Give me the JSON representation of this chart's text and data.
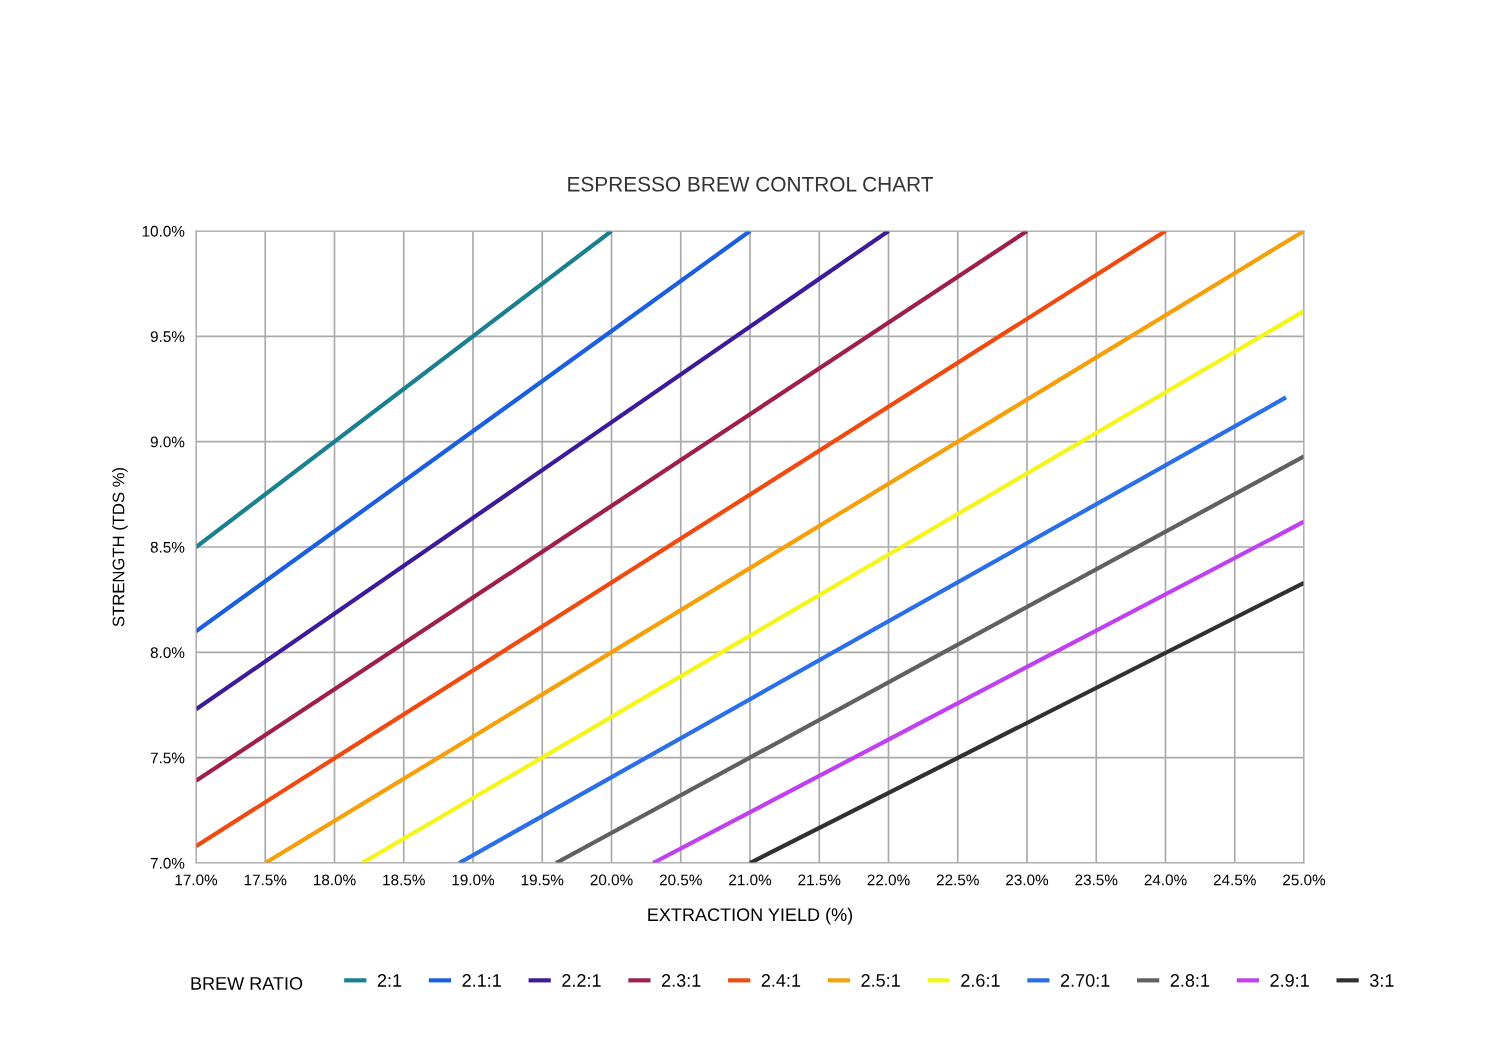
{
  "chart_data": {
    "type": "line",
    "title": "ESPRESSO BREW CONTROL CHART",
    "xlabel": "EXTRACTION YIELD (%)",
    "ylabel": "STRENGTH (TDS %)",
    "legend_title": "BREW RATIO",
    "legend": "bottom",
    "grid": true,
    "marker": "none",
    "line_style": "solid",
    "xlim": [
      17.0,
      25.0
    ],
    "ylim": [
      7.0,
      10.0
    ],
    "xticks": [
      {
        "value": 17.0,
        "label": "17.0%"
      },
      {
        "value": 17.5,
        "label": "17.5%"
      },
      {
        "value": 18.0,
        "label": "18.0%"
      },
      {
        "value": 18.5,
        "label": "18.5%"
      },
      {
        "value": 19.0,
        "label": "19.0%"
      },
      {
        "value": 19.5,
        "label": "19.5%"
      },
      {
        "value": 20.0,
        "label": "20.0%"
      },
      {
        "value": 20.5,
        "label": "20.5%"
      },
      {
        "value": 21.0,
        "label": "21.0%"
      },
      {
        "value": 21.5,
        "label": "21.5%"
      },
      {
        "value": 22.0,
        "label": "22.0%"
      },
      {
        "value": 22.5,
        "label": "22.5%"
      },
      {
        "value": 23.0,
        "label": "23.0%"
      },
      {
        "value": 23.5,
        "label": "23.5%"
      },
      {
        "value": 24.0,
        "label": "24.0%"
      },
      {
        "value": 24.5,
        "label": "24.5%"
      },
      {
        "value": 25.0,
        "label": "25.0%"
      }
    ],
    "yticks": [
      {
        "value": 7.0,
        "label": "7.0%"
      },
      {
        "value": 7.5,
        "label": "7.5%"
      },
      {
        "value": 8.0,
        "label": "8.0%"
      },
      {
        "value": 8.5,
        "label": "8.5%"
      },
      {
        "value": 9.0,
        "label": "9.0%"
      },
      {
        "value": 9.5,
        "label": "9.5%"
      },
      {
        "value": 10.0,
        "label": "10.0%"
      }
    ],
    "series": [
      {
        "name": "2:1",
        "color": "#1a7f8e",
        "x": [
          17.0,
          20.0
        ],
        "values": [
          8.5,
          10.0
        ]
      },
      {
        "name": "2.1:1",
        "color": "#1a5fe0",
        "x": [
          17.0,
          21.0
        ],
        "values": [
          8.1,
          10.0
        ]
      },
      {
        "name": "2.2:1",
        "color": "#3d1a99",
        "x": [
          17.0,
          22.0
        ],
        "values": [
          7.73,
          10.0
        ]
      },
      {
        "name": "2.3:1",
        "color": "#9e1f4a",
        "x": [
          17.0,
          23.0
        ],
        "values": [
          7.39,
          10.0
        ]
      },
      {
        "name": "2.4:1",
        "color": "#f04a10",
        "x": [
          17.0,
          24.0
        ],
        "values": [
          7.08,
          10.0
        ]
      },
      {
        "name": "2.5:1",
        "color": "#f5a00a",
        "x": [
          17.5,
          25.0
        ],
        "values": [
          7.0,
          10.0
        ]
      },
      {
        "name": "2.6:1",
        "color": "#f5f51a",
        "x": [
          18.2,
          25.0
        ],
        "values": [
          7.0,
          9.62
        ]
      },
      {
        "name": "2.70:1",
        "color": "#2a6ee8",
        "x": [
          18.9,
          24.87
        ],
        "values": [
          7.0,
          9.21
        ]
      },
      {
        "name": "2.8:1",
        "color": "#606060",
        "x": [
          19.6,
          25.0
        ],
        "values": [
          7.0,
          8.93
        ]
      },
      {
        "name": "2.9:1",
        "color": "#c040f0",
        "x": [
          20.3,
          25.0
        ],
        "values": [
          7.0,
          8.62
        ]
      },
      {
        "name": "3:1",
        "color": "#303030",
        "x": [
          21.0,
          25.0
        ],
        "values": [
          7.0,
          8.33
        ]
      }
    ]
  }
}
